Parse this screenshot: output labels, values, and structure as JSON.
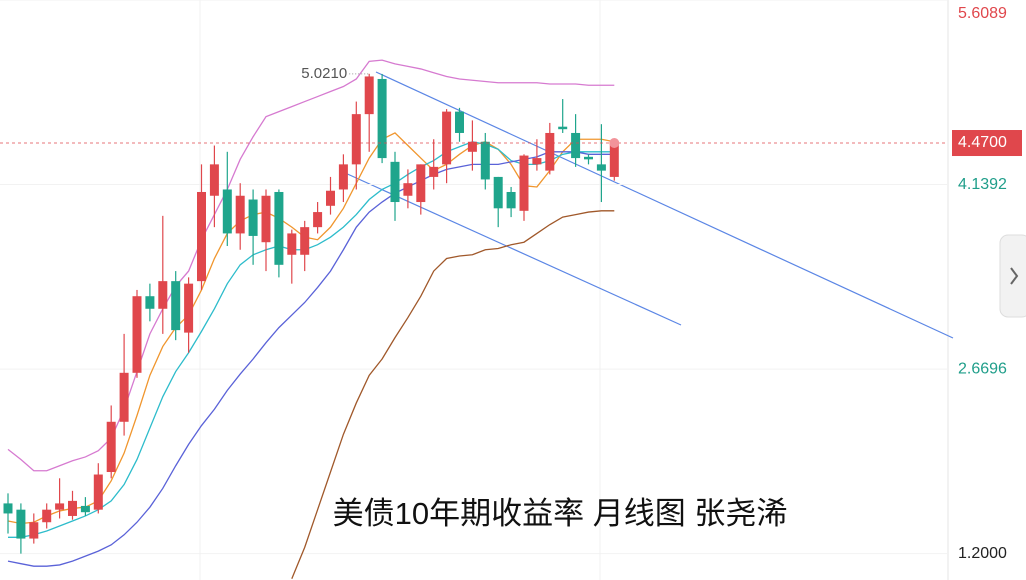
{
  "chart_data": {
    "type": "candlestick",
    "title": "美债10年期收益率 月线图 张尧浠",
    "ylim": [
      0.99,
      5.6089
    ],
    "yticks": [
      5.6089,
      4.1392,
      2.6696,
      {
        "value": 1.2,
        "label": "1.2000"
      }
    ],
    "ytick_colors": [
      "#e0474c",
      "#1f9e8a",
      "#1f9e8a",
      "#222222"
    ],
    "last_price": {
      "value": 4.47,
      "label": "4.4700"
    },
    "high_annotation": {
      "value": 5.021,
      "label": "5.0210"
    },
    "up_color": "#e0474c",
    "down_color": "#1fa58c",
    "candles": {
      "open": [
        1.6,
        1.55,
        1.32,
        1.45,
        1.55,
        1.5,
        1.58,
        1.55,
        1.85,
        2.25,
        2.64,
        3.25,
        3.15,
        3.37,
        2.96,
        3.37,
        4.05,
        4.1,
        3.75,
        4.02,
        3.68,
        4.08,
        3.58,
        3.58,
        3.8,
        3.97,
        4.1,
        4.3,
        4.7,
        4.98,
        4.32,
        4.05,
        4.0,
        4.2,
        4.3,
        4.72,
        4.4,
        4.48,
        4.2,
        4.08,
        3.93,
        4.3,
        4.25,
        4.6,
        4.55,
        4.36,
        4.3,
        4.2
      ],
      "high": [
        1.68,
        1.6,
        1.52,
        1.6,
        1.8,
        1.7,
        1.65,
        1.92,
        2.38,
        2.95,
        3.3,
        3.35,
        3.89,
        3.45,
        3.4,
        4.3,
        4.45,
        4.4,
        4.15,
        4.1,
        4.1,
        4.1,
        3.78,
        3.85,
        4.0,
        4.2,
        4.38,
        4.8,
        5.021,
        5.02,
        4.4,
        4.26,
        4.3,
        4.5,
        4.74,
        4.75,
        4.65,
        4.55,
        4.2,
        4.12,
        4.38,
        4.5,
        4.63,
        4.82,
        4.7,
        4.38,
        4.62,
        4.5
      ],
      "low": [
        1.36,
        1.2,
        1.28,
        1.4,
        1.48,
        1.47,
        1.5,
        1.52,
        1.8,
        2.14,
        2.6,
        3.05,
        2.95,
        2.9,
        2.8,
        3.3,
        3.8,
        3.65,
        3.62,
        3.5,
        3.45,
        3.4,
        3.35,
        3.45,
        3.75,
        3.9,
        4.0,
        4.1,
        4.4,
        4.31,
        3.85,
        3.95,
        3.9,
        4.1,
        4.15,
        4.48,
        4.25,
        4.1,
        3.8,
        3.88,
        3.85,
        4.25,
        4.22,
        4.55,
        4.28,
        4.3,
        4.0,
        4.17
      ],
      "close": [
        1.52,
        1.32,
        1.45,
        1.55,
        1.6,
        1.62,
        1.53,
        1.83,
        2.25,
        2.64,
        3.25,
        3.15,
        3.37,
        2.98,
        3.35,
        4.08,
        4.3,
        3.75,
        4.05,
        3.73,
        4.05,
        3.5,
        3.75,
        3.8,
        3.92,
        4.09,
        4.3,
        4.7,
        5.0,
        4.35,
        4.0,
        4.15,
        4.3,
        4.28,
        4.72,
        4.55,
        4.48,
        4.18,
        3.95,
        3.95,
        4.37,
        4.35,
        4.55,
        4.58,
        4.35,
        4.34,
        4.25,
        4.47
      ]
    },
    "series": [
      {
        "color": "#d67ad0",
        "values": [
          2.03,
          1.95,
          1.86,
          1.86,
          1.9,
          1.94,
          1.97,
          2.02,
          2.12,
          2.35,
          2.65,
          2.95,
          3.15,
          3.33,
          3.45,
          3.7,
          3.9,
          4.1,
          4.34,
          4.52,
          4.68,
          4.72,
          4.76,
          4.8,
          4.84,
          4.88,
          4.92,
          4.98,
          5.12,
          5.13,
          5.1,
          5.08,
          5.06,
          5.03,
          5.0,
          4.98,
          4.97,
          4.96,
          4.95,
          4.95,
          4.95,
          4.95,
          4.94,
          4.94,
          4.94,
          4.93,
          4.93,
          4.93
        ]
      },
      {
        "color": "#f0962e",
        "values": [
          1.46,
          1.44,
          1.45,
          1.5,
          1.54,
          1.56,
          1.57,
          1.62,
          1.78,
          2.0,
          2.3,
          2.62,
          2.85,
          3.0,
          3.1,
          3.3,
          3.55,
          3.75,
          3.85,
          3.9,
          3.92,
          3.87,
          3.8,
          3.72,
          3.7,
          3.8,
          3.95,
          4.15,
          4.35,
          4.5,
          4.55,
          4.45,
          4.35,
          4.25,
          4.3,
          4.38,
          4.45,
          4.48,
          4.42,
          4.3,
          4.13,
          4.12,
          4.25,
          4.4,
          4.5,
          4.5,
          4.5,
          4.48
        ]
      },
      {
        "color": "#2dbccb",
        "values": [
          1.33,
          1.33,
          1.35,
          1.38,
          1.42,
          1.46,
          1.5,
          1.55,
          1.62,
          1.75,
          1.95,
          2.2,
          2.45,
          2.65,
          2.8,
          2.97,
          3.15,
          3.35,
          3.5,
          3.58,
          3.62,
          3.65,
          3.62,
          3.62,
          3.66,
          3.72,
          3.8,
          3.9,
          4.02,
          4.1,
          4.15,
          4.22,
          4.28,
          4.33,
          4.4,
          4.44,
          4.48,
          4.46,
          4.42,
          4.33,
          4.3,
          4.3,
          4.33,
          4.38,
          4.4,
          4.4,
          4.4,
          4.4
        ]
      },
      {
        "color": "#5a62d8",
        "values": [
          1.14,
          1.12,
          1.1,
          1.1,
          1.11,
          1.14,
          1.18,
          1.22,
          1.27,
          1.35,
          1.45,
          1.57,
          1.72,
          1.9,
          2.07,
          2.22,
          2.35,
          2.5,
          2.63,
          2.75,
          2.88,
          3.0,
          3.1,
          3.2,
          3.32,
          3.45,
          3.62,
          3.8,
          3.92,
          4.0,
          4.07,
          4.12,
          4.17,
          4.22,
          4.26,
          4.28,
          4.3,
          4.3,
          4.3,
          4.32,
          4.34,
          4.36,
          4.4,
          4.4,
          4.4,
          4.38,
          4.38,
          4.38
        ]
      },
      {
        "color": "#a0582a",
        "values": [
          null,
          null,
          null,
          null,
          null,
          null,
          null,
          null,
          null,
          null,
          null,
          null,
          null,
          null,
          null,
          null,
          null,
          null,
          null,
          null,
          null,
          null,
          1.0,
          1.25,
          1.55,
          1.85,
          2.15,
          2.4,
          2.62,
          2.75,
          2.92,
          3.08,
          3.25,
          3.45,
          3.55,
          3.57,
          3.58,
          3.62,
          3.63,
          3.66,
          3.68,
          3.75,
          3.82,
          3.88,
          3.9,
          3.92,
          3.93,
          3.93
        ]
      }
    ]
  }
}
